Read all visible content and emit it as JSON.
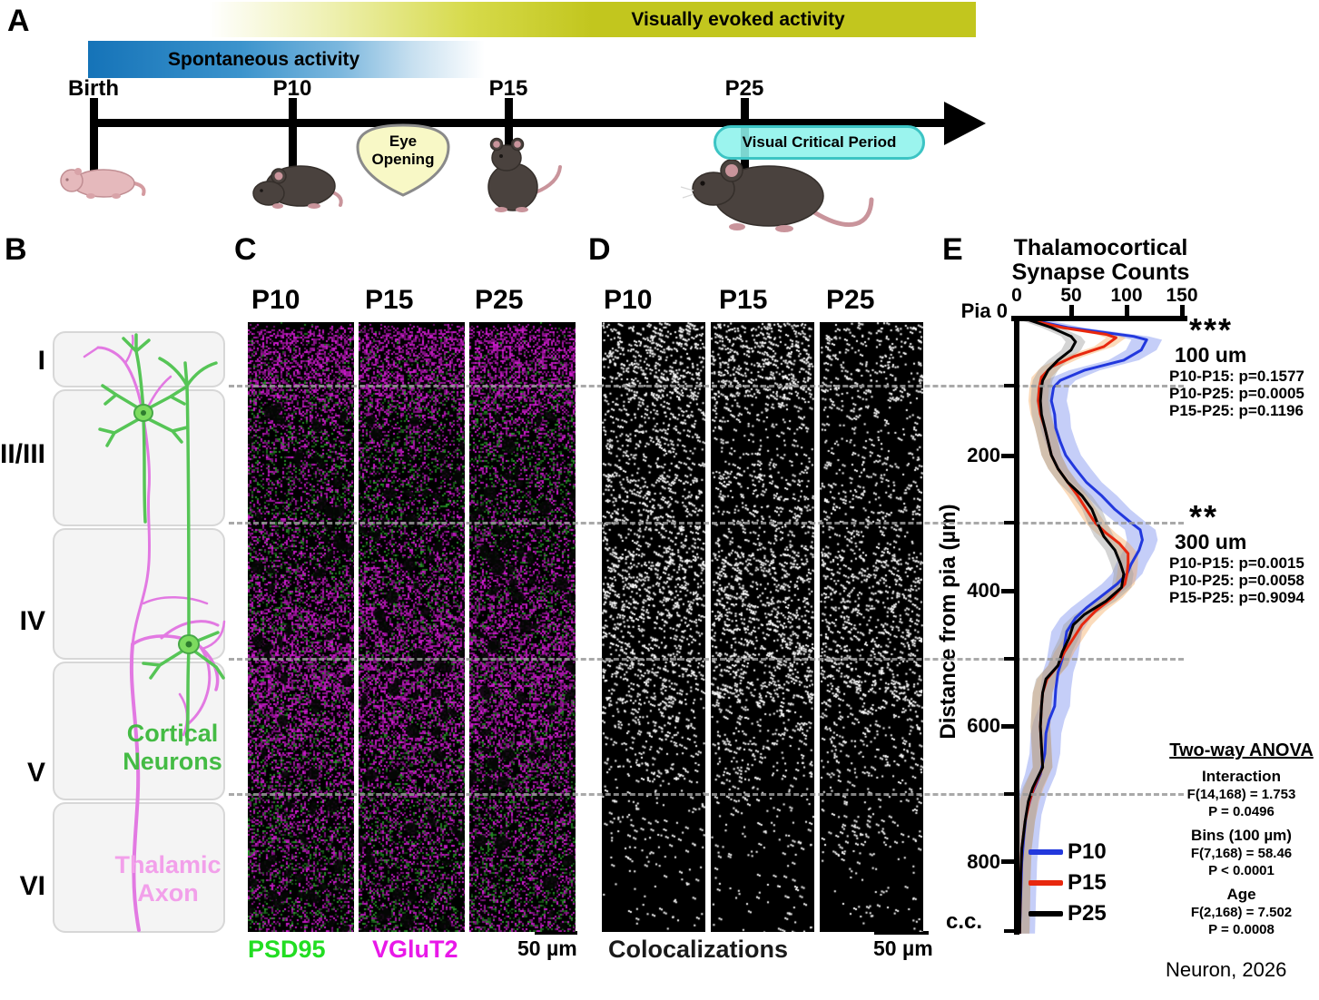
{
  "panelA": {
    "letter": "A",
    "evoked_label": "Visually evoked activity",
    "evoked_color": "#c2c61e",
    "spontaneous_label": "Spontaneous activity",
    "spontaneous_color": "#1573b8",
    "timepoints": [
      "Birth",
      "P10",
      "P15",
      "P25"
    ],
    "eye_opening": [
      "Eye",
      "Opening"
    ],
    "critical_period": "Visual Critical Period",
    "critical_period_color": "#8df2ec"
  },
  "panelB": {
    "letter": "B",
    "layers": [
      "I",
      "II/III",
      "IV",
      "V",
      "VI"
    ],
    "cortical": [
      "Cortical",
      "Neurons"
    ],
    "cortical_color": "#44bb44",
    "thalamic": [
      "Thalamic",
      "Axon"
    ],
    "thalamic_color": "#f2a0ea"
  },
  "panelC": {
    "letter": "C",
    "columns": [
      "P10",
      "P15",
      "P25"
    ],
    "label_green": "PSD95",
    "label_green_color": "#22dd22",
    "label_magenta": "VGluT2",
    "label_magenta_color": "#e818e8",
    "scale_label": "50 µm",
    "magenta_profile": [
      [
        0,
        0
      ],
      [
        0.015,
        0.85
      ],
      [
        0.1,
        0.8
      ],
      [
        0.16,
        0.45
      ],
      [
        0.28,
        0.3
      ],
      [
        0.38,
        0.42
      ],
      [
        0.48,
        0.7
      ],
      [
        0.58,
        0.85
      ],
      [
        0.66,
        0.72
      ],
      [
        0.76,
        0.5
      ],
      [
        0.88,
        0.42
      ],
      [
        1,
        0.38
      ]
    ],
    "green_profile": [
      [
        0,
        0.02
      ],
      [
        0.06,
        0.12
      ],
      [
        0.13,
        0.38
      ],
      [
        0.3,
        0.45
      ],
      [
        0.45,
        0.35
      ],
      [
        0.6,
        0.3
      ],
      [
        0.75,
        0.4
      ],
      [
        0.9,
        0.45
      ],
      [
        1,
        0.45
      ]
    ]
  },
  "panelD": {
    "letter": "D",
    "columns": [
      "P10",
      "P15",
      "P25"
    ],
    "caption": "Colocalizations",
    "scale_label": "50 µm",
    "dot_profile": [
      [
        430,
        260,
        330,
        430,
        330,
        190,
        90,
        45
      ],
      [
        440,
        180,
        250,
        400,
        390,
        190,
        90,
        45
      ],
      [
        230,
        150,
        190,
        330,
        340,
        190,
        110,
        45
      ]
    ]
  },
  "panelE": {
    "letter": "E",
    "title_line1": "Thalamocortical",
    "title_line2": "Synapse Counts",
    "x_tick_labels": [
      "0",
      "50",
      "100",
      "150"
    ],
    "pia_label": "Pia 0",
    "y_tick_labels": [
      "200",
      "400",
      "600",
      "800"
    ],
    "cc_label": "c.c.",
    "y_axis_label": "Distance from pia (µm)",
    "stats_100": {
      "stars": "***",
      "title": "100 um",
      "lines": [
        "P10-P15: p=0.1577",
        "P10-P25: p=0.0005",
        "P15-P25: p=0.1196"
      ]
    },
    "stats_300": {
      "stars": "**",
      "title": "300 um",
      "lines": [
        "P10-P15: p=0.0015",
        "P10-P25: p=0.0058",
        "P15-P25: p=0.9094"
      ]
    },
    "anova": {
      "title": "Two-way ANOVA",
      "sections": [
        {
          "name": "Interaction",
          "f": "F(14,168) = 1.753",
          "p": "P = 0.0496"
        },
        {
          "name": "Bins (100 µm)",
          "f": "F(7,168) = 58.46",
          "p": "P < 0.0001"
        },
        {
          "name": "Age",
          "f": "F(2,168) = 7.502",
          "p": "P = 0.0008"
        }
      ]
    }
  },
  "chart_data": {
    "type": "line",
    "title": "Thalamocortical Synapse Counts",
    "xlabel": "Synapse count",
    "ylabel": "Distance from pia (µm)",
    "orientation": "counts on x (top axis), depth below pia increasing downward on y",
    "xlim": [
      0,
      157
    ],
    "ylim": [
      0,
      907
    ],
    "x_ticks": [
      0,
      50,
      100,
      150
    ],
    "y_tick_labels": [
      "Pia 0",
      "200",
      "400",
      "600",
      "800",
      "c.c."
    ],
    "boundary_lines_um": [
      100,
      300,
      500,
      700
    ],
    "legend_position": "bottom-left inside plot",
    "series": [
      {
        "name": "P10",
        "color": "#2238dd",
        "band_color": "rgba(90,115,235,0.35)",
        "band": 14,
        "points": [
          [
            0,
            10
          ],
          [
            12,
            45
          ],
          [
            25,
            105
          ],
          [
            30,
            117
          ],
          [
            45,
            112
          ],
          [
            60,
            96
          ],
          [
            75,
            60
          ],
          [
            90,
            38
          ],
          [
            100,
            32
          ],
          [
            120,
            30
          ],
          [
            140,
            33
          ],
          [
            160,
            34
          ],
          [
            180,
            38
          ],
          [
            200,
            43
          ],
          [
            220,
            52
          ],
          [
            240,
            62
          ],
          [
            260,
            76
          ],
          [
            280,
            88
          ],
          [
            300,
            103
          ],
          [
            310,
            111
          ],
          [
            325,
            113
          ],
          [
            340,
            110
          ],
          [
            360,
            103
          ],
          [
            375,
            99
          ],
          [
            390,
            90
          ],
          [
            410,
            74
          ],
          [
            425,
            62
          ],
          [
            440,
            52
          ],
          [
            460,
            44
          ],
          [
            480,
            42
          ],
          [
            500,
            40
          ],
          [
            520,
            36
          ],
          [
            545,
            34
          ],
          [
            570,
            33
          ],
          [
            590,
            28
          ],
          [
            610,
            25
          ],
          [
            640,
            24
          ],
          [
            670,
            20
          ],
          [
            700,
            12
          ],
          [
            730,
            7
          ],
          [
            760,
            5
          ],
          [
            800,
            3
          ],
          [
            850,
            2
          ],
          [
            905,
            1
          ]
        ]
      },
      {
        "name": "P15",
        "color": "#e8280e",
        "band_color": "rgba(246,166,86,0.4)",
        "band": 9,
        "points": [
          [
            0,
            8
          ],
          [
            12,
            40
          ],
          [
            22,
            80
          ],
          [
            27,
            89
          ],
          [
            40,
            78
          ],
          [
            55,
            50
          ],
          [
            70,
            30
          ],
          [
            85,
            21
          ],
          [
            100,
            19
          ],
          [
            120,
            18
          ],
          [
            140,
            20
          ],
          [
            160,
            24
          ],
          [
            180,
            27
          ],
          [
            200,
            30
          ],
          [
            220,
            36
          ],
          [
            240,
            45
          ],
          [
            260,
            54
          ],
          [
            280,
            62
          ],
          [
            300,
            70
          ],
          [
            315,
            80
          ],
          [
            330,
            92
          ],
          [
            345,
            100
          ],
          [
            360,
            100
          ],
          [
            375,
            99
          ],
          [
            390,
            97
          ],
          [
            410,
            86
          ],
          [
            430,
            70
          ],
          [
            450,
            58
          ],
          [
            470,
            50
          ],
          [
            490,
            42
          ],
          [
            510,
            36
          ],
          [
            530,
            26
          ],
          [
            550,
            22
          ],
          [
            570,
            21
          ],
          [
            600,
            20
          ],
          [
            630,
            21
          ],
          [
            660,
            22
          ],
          [
            690,
            14
          ],
          [
            710,
            10
          ],
          [
            740,
            6
          ],
          [
            780,
            3
          ],
          [
            820,
            2
          ],
          [
            905,
            1
          ]
        ]
      },
      {
        "name": "P25",
        "color": "#000000",
        "band_color": "rgba(160,160,160,0.45)",
        "band": 9,
        "points": [
          [
            0,
            8
          ],
          [
            12,
            30
          ],
          [
            25,
            48
          ],
          [
            33,
            52
          ],
          [
            45,
            48
          ],
          [
            60,
            36
          ],
          [
            75,
            27
          ],
          [
            90,
            22
          ],
          [
            100,
            21
          ],
          [
            120,
            20
          ],
          [
            140,
            21
          ],
          [
            160,
            24
          ],
          [
            180,
            27
          ],
          [
            200,
            30
          ],
          [
            220,
            36
          ],
          [
            240,
            45
          ],
          [
            260,
            58
          ],
          [
            280,
            67
          ],
          [
            300,
            72
          ],
          [
            320,
            78
          ],
          [
            340,
            88
          ],
          [
            360,
            93
          ],
          [
            375,
            96
          ],
          [
            395,
            94
          ],
          [
            415,
            80
          ],
          [
            435,
            60
          ],
          [
            450,
            50
          ],
          [
            470,
            46
          ],
          [
            490,
            40
          ],
          [
            510,
            36
          ],
          [
            530,
            25
          ],
          [
            550,
            22
          ],
          [
            570,
            21
          ],
          [
            600,
            20
          ],
          [
            630,
            21
          ],
          [
            660,
            22
          ],
          [
            690,
            13
          ],
          [
            710,
            9
          ],
          [
            740,
            6
          ],
          [
            780,
            3
          ],
          [
            820,
            2
          ],
          [
            905,
            1
          ]
        ]
      }
    ]
  },
  "credit": "Neuron, 2026"
}
